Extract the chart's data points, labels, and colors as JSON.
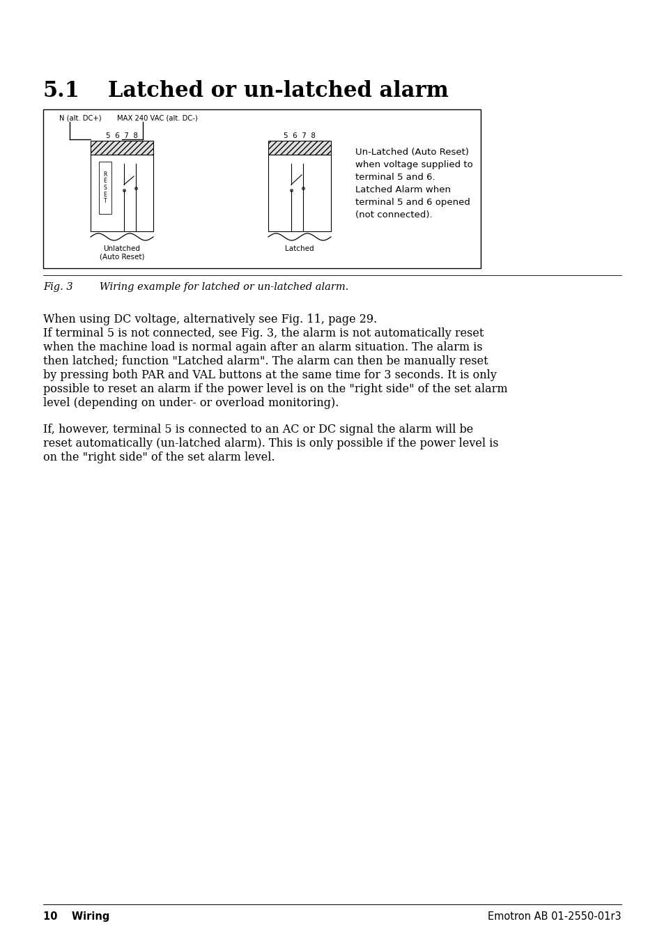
{
  "title_number": "5.1",
  "title_text": "Latched or un-latched alarm",
  "title_fontsize": 22,
  "body_fontsize": 11.5,
  "fig_caption_italic": "Fig. 3",
  "fig_caption_rest": "      Wiring example for latched or un-latched alarm.",
  "paragraph1_lines": [
    "When using DC voltage, alternatively see Fig. 11, page 29.",
    "If terminal 5 is not connected, see Fig. 3, the alarm is not automatically reset",
    "when the machine load is normal again after an alarm situation. The alarm is",
    "then latched; function \"Latched alarm\". The alarm can then be manually reset",
    "by pressing both PAR and VAL buttons at the same time for 3 seconds. It is only",
    "possible to reset an alarm if the power level is on the \"right side\" of the set alarm",
    "level (depending on under- or overload monitoring)."
  ],
  "paragraph2_lines": [
    "If, however, terminal 5 is connected to an AC or DC signal the alarm will be",
    "reset automatically (un-latched alarm). This is only possible if the power level is",
    "on the \"right side\" of the set alarm level."
  ],
  "footer_left": "10    Wiring",
  "footer_right": "Emotron AB 01-2550-01r3",
  "background_color": "#ffffff",
  "text_color": "#000000",
  "diagram_label_left_top": "N (alt. DC+)",
  "diagram_label_right_top": "MAX 240 VAC (alt. DC-)",
  "diagram_numbers_left": "5  6  7  8",
  "diagram_numbers_right": "5  6  7  8",
  "diagram_label_unlatched": "Unlatched\n(Auto Reset)",
  "diagram_label_latched": "Latched",
  "diagram_side_text": [
    "Un-Latched (Auto Reset)",
    "when voltage supplied to",
    "terminal 5 and 6.",
    "Latched Alarm when",
    "terminal 5 and 6 opened",
    "(not connected)."
  ]
}
